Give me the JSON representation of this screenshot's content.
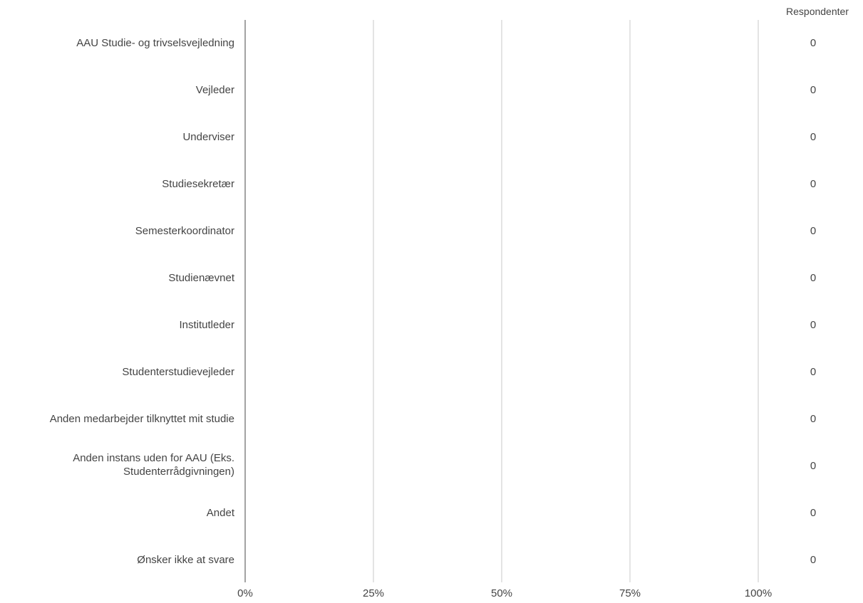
{
  "chart_data": {
    "type": "bar",
    "orientation": "horizontal",
    "title": "",
    "value_column_header": "Respondenter",
    "categories": [
      "AAU Studie- og trivselsvejledning",
      "Vejleder",
      "Underviser",
      "Studiesekretær",
      "Semesterkoordinator",
      "Studienævnet",
      "Institutleder",
      "Studenterstudievejleder",
      "Anden medarbejder tilknyttet mit studie",
      "Anden instans uden for AAU (Eks. Studenterrådgivningen)",
      "Andet",
      "Ønsker ikke at svare"
    ],
    "values": [
      0,
      0,
      0,
      0,
      0,
      0,
      0,
      0,
      0,
      0,
      0,
      0
    ],
    "respondents": [
      "0",
      "0",
      "0",
      "0",
      "0",
      "0",
      "0",
      "0",
      "0",
      "0",
      "0",
      "0"
    ],
    "xlim": [
      0,
      100
    ],
    "x_ticks": [
      0,
      25,
      50,
      75,
      100
    ],
    "x_tick_labels": [
      "0%",
      "25%",
      "50%",
      "75%",
      "100%"
    ],
    "grid": true,
    "legend": "none",
    "colors": {
      "gridline": "#c8c8c8",
      "axis": "#666666",
      "bar": "#4a7ab8",
      "text": "#444444"
    }
  }
}
